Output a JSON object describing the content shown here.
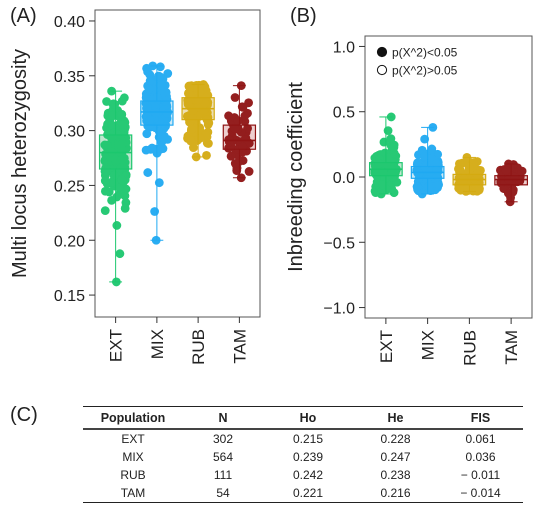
{
  "chart_data": [
    {
      "panel": "(A)",
      "type": "box-jitter",
      "ylabel": "Multi locus heterozygosity",
      "ylim": [
        0.13,
        0.41
      ],
      "yticks": [
        0.15,
        0.2,
        0.25,
        0.3,
        0.35,
        0.4
      ],
      "categories": [
        "EXT",
        "MIX",
        "RUB",
        "TAM"
      ],
      "colors": [
        "#1cc76e",
        "#1fa9f2",
        "#d4aa11",
        "#8f1414"
      ],
      "box_fill": [
        "#bfe6cf",
        "#cce8f6",
        "#ecdfb4",
        "#edcfcf"
      ],
      "boxes": [
        {
          "q1": 0.265,
          "median": 0.28,
          "q3": 0.296,
          "whisker_low": 0.162,
          "whisker_high": 0.336,
          "min": 0.162,
          "max": 0.336,
          "n": 302
        },
        {
          "q1": 0.305,
          "median": 0.317,
          "q3": 0.327,
          "whisker_low": 0.2,
          "whisker_high": 0.359,
          "min": 0.2,
          "max": 0.359,
          "n": 564
        },
        {
          "q1": 0.31,
          "median": 0.32,
          "q3": 0.33,
          "whisker_low": 0.276,
          "whisker_high": 0.342,
          "min": 0.276,
          "max": 0.342,
          "n": 111
        },
        {
          "q1": 0.283,
          "median": 0.291,
          "q3": 0.305,
          "whisker_low": 0.257,
          "whisker_high": 0.341,
          "min": 0.257,
          "max": 0.341,
          "n": 54
        }
      ]
    },
    {
      "panel": "(B)",
      "type": "box-jitter",
      "ylabel": "Inbreeding coefficient",
      "ylim": [
        -1.08,
        1.08
      ],
      "yticks": [
        -1.0,
        -0.5,
        0.0,
        0.5,
        1.0
      ],
      "ytick_labels": [
        "−1.0",
        "−0.5",
        "0.0",
        "0.5",
        "1.0"
      ],
      "categories": [
        "EXT",
        "MIX",
        "RUB",
        "TAM"
      ],
      "colors": [
        "#1cc76e",
        "#1fa9f2",
        "#d4aa11",
        "#8f1414"
      ],
      "box_fill": [
        "#bfe6cf",
        "#cce8f6",
        "#ecdfb4",
        "#edcfcf"
      ],
      "legend": {
        "position": "top-left",
        "entries": [
          {
            "label": "p(X^2)<0.05",
            "marker": "filled"
          },
          {
            "label": "p(X^2)>0.05",
            "marker": "open"
          }
        ]
      },
      "boxes": [
        {
          "q1": 0.01,
          "median": 0.06,
          "q3": 0.11,
          "whisker_low": -0.13,
          "whisker_high": 0.46,
          "n": 302
        },
        {
          "q1": -0.01,
          "median": 0.035,
          "q3": 0.08,
          "whisker_low": -0.13,
          "whisker_high": 0.38,
          "n": 564
        },
        {
          "q1": -0.06,
          "median": -0.02,
          "q3": 0.02,
          "whisker_low": -0.11,
          "whisker_high": 0.15,
          "n": 111
        },
        {
          "q1": -0.06,
          "median": -0.02,
          "q3": 0.01,
          "whisker_low": -0.19,
          "whisker_high": 0.1,
          "n": 54
        }
      ]
    }
  ],
  "table": {
    "panel": "(C)",
    "headers": [
      "Population",
      "N",
      "Ho",
      "He",
      "FIS"
    ],
    "rows": [
      [
        "EXT",
        "302",
        "0.215",
        "0.228",
        "0.061"
      ],
      [
        "MIX",
        "564",
        "0.239",
        "0.247",
        "0.036"
      ],
      [
        "RUB",
        "111",
        "0.242",
        "0.238",
        "− 0.011"
      ],
      [
        "TAM",
        "54",
        "0.221",
        "0.216",
        "− 0.014"
      ]
    ]
  }
}
